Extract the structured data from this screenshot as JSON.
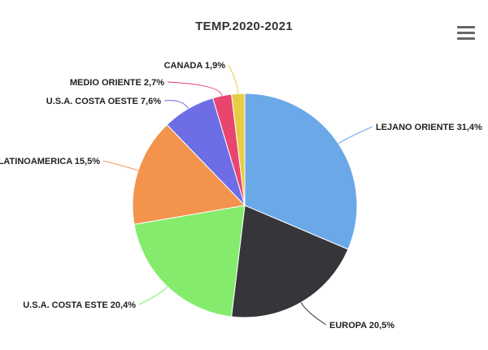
{
  "menu_icon": "hamburger-menu-icon",
  "chart_data": {
    "type": "pie",
    "title": "TEMP.2020-2021",
    "slices": [
      {
        "label": "LEJANO ORIENTE 31,4%",
        "value": 31.4,
        "color": "#6aa8e8"
      },
      {
        "label": "EUROPA 20,5%",
        "value": 20.5,
        "color": "#35353a"
      },
      {
        "label": "U.S.A. COSTA ESTE 20,4%",
        "value": 20.4,
        "color": "#84eb6d"
      },
      {
        "label": "LATINOAMERICA 15,5%",
        "value": 15.5,
        "color": "#f3934c"
      },
      {
        "label": "U.S.A. COSTA OESTE 7,6%",
        "value": 7.6,
        "color": "#6d6ee6"
      },
      {
        "label": "MEDIO ORIENTE 2,7%",
        "value": 2.7,
        "color": "#e8456f"
      },
      {
        "label": "CANADA 1,9%",
        "value": 1.9,
        "color": "#e5ce45"
      }
    ]
  }
}
